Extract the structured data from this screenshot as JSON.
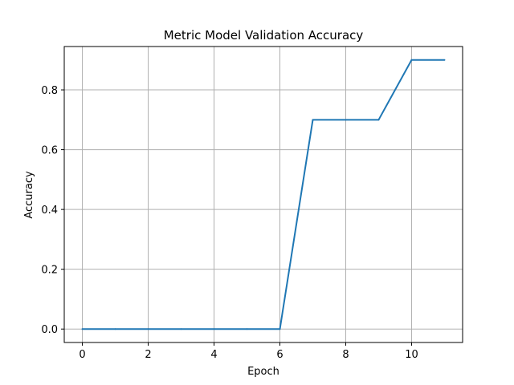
{
  "chart_data": {
    "type": "line",
    "title": "Metric Model Validation Accuracy",
    "xlabel": "Epoch",
    "ylabel": "Accuracy",
    "x": [
      0,
      1,
      2,
      3,
      4,
      5,
      6,
      7,
      8,
      9,
      10,
      11
    ],
    "series": [
      {
        "values": [
          0.0,
          0.0,
          0.0,
          0.0,
          0.0,
          0.0,
          0.0,
          0.7,
          0.7,
          0.7,
          0.9,
          0.9
        ],
        "color": "#1f77b4"
      }
    ],
    "xlim": [
      -0.55,
      11.55
    ],
    "ylim": [
      -0.045,
      0.945
    ],
    "xticks": [
      "0",
      "2",
      "4",
      "6",
      "8",
      "10"
    ],
    "yticks": [
      "0.0",
      "0.2",
      "0.4",
      "0.6",
      "0.8"
    ],
    "grid": true,
    "grid_color": "#b0b0b0"
  }
}
